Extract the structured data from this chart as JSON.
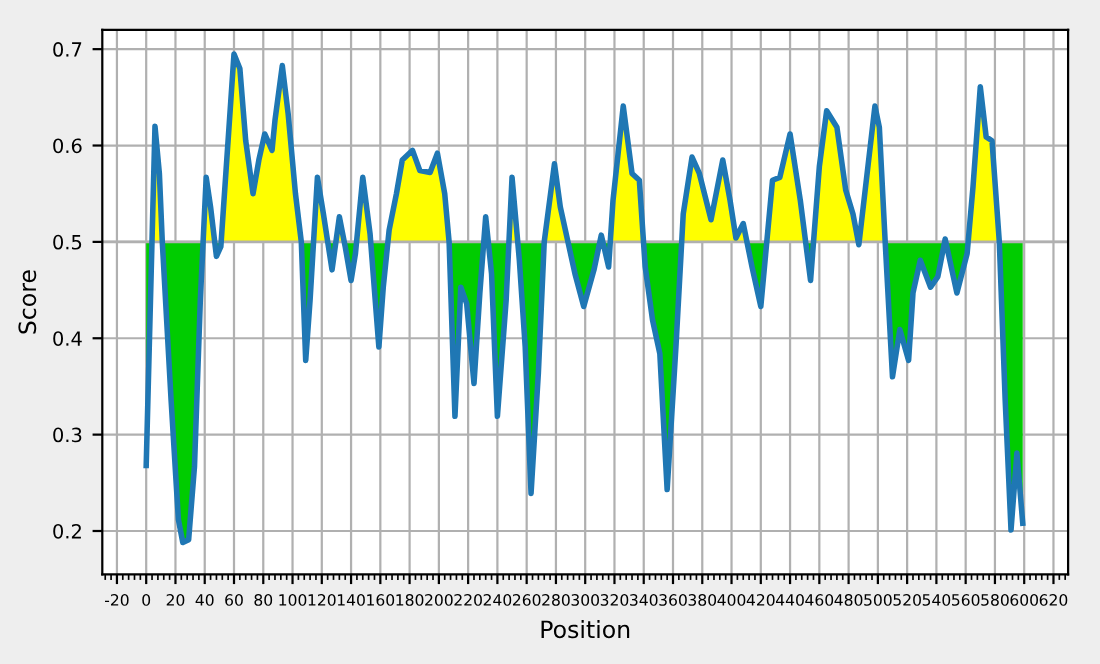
{
  "chart_data": {
    "type": "line",
    "xlabel": "Position",
    "ylabel": "Score",
    "xlim": [
      -30,
      630
    ],
    "ylim": [
      0.155,
      0.72
    ],
    "xticks": [
      -20,
      0,
      20,
      40,
      60,
      80,
      100,
      120,
      140,
      160,
      180,
      200,
      220,
      240,
      260,
      280,
      300,
      320,
      340,
      360,
      380,
      400,
      420,
      440,
      460,
      480,
      500,
      520,
      540,
      560,
      580,
      600,
      620
    ],
    "yticks": [
      0.2,
      0.3,
      0.4,
      0.5,
      0.6,
      0.7
    ],
    "grid": true,
    "ref_lines": [
      {
        "axis": "y",
        "value": 0.5,
        "color": "#b0b0b0"
      }
    ],
    "series": [
      {
        "color": "#1f77b4",
        "x": [
          0,
          6,
          9,
          11,
          17,
          22,
          25,
          29,
          33,
          37,
          41,
          44,
          48,
          51,
          60,
          64,
          68,
          73,
          77,
          81,
          86,
          88,
          93,
          97,
          102,
          106,
          109,
          112,
          117,
          121,
          127,
          132,
          136,
          140,
          143,
          148,
          153,
          159,
          162,
          166,
          171,
          175,
          182,
          187,
          194,
          199,
          204,
          207,
          211,
          215,
          219,
          224,
          228,
          232,
          236,
          240,
          246,
          250,
          255,
          259,
          263,
          268,
          272,
          279,
          283,
          293,
          299,
          306,
          311,
          316,
          319,
          326,
          332,
          337,
          341,
          346,
          351,
          356,
          362,
          367,
          373,
          378,
          386,
          394,
          399,
          403,
          408,
          414,
          420,
          428,
          433,
          440,
          447,
          454,
          460,
          465,
          472,
          478,
          483,
          487,
          498,
          501,
          505,
          510,
          515,
          521,
          524,
          529,
          536,
          541,
          546,
          554,
          561,
          565,
          570,
          574,
          578,
          583,
          587,
          591,
          595,
          599
        ],
        "values": [
          0.268,
          0.62,
          0.571,
          0.5,
          0.336,
          0.212,
          0.188,
          0.191,
          0.267,
          0.44,
          0.567,
          0.536,
          0.485,
          0.495,
          0.695,
          0.68,
          0.605,
          0.55,
          0.585,
          0.612,
          0.595,
          0.626,
          0.683,
          0.633,
          0.55,
          0.5,
          0.377,
          0.44,
          0.567,
          0.53,
          0.471,
          0.526,
          0.495,
          0.46,
          0.488,
          0.567,
          0.508,
          0.391,
          0.453,
          0.512,
          0.55,
          0.585,
          0.595,
          0.574,
          0.572,
          0.592,
          0.55,
          0.5,
          0.319,
          0.453,
          0.436,
          0.353,
          0.447,
          0.526,
          0.467,
          0.319,
          0.44,
          0.567,
          0.481,
          0.391,
          0.239,
          0.364,
          0.5,
          0.581,
          0.536,
          0.467,
          0.433,
          0.471,
          0.507,
          0.474,
          0.543,
          0.641,
          0.571,
          0.564,
          0.474,
          0.419,
          0.384,
          0.243,
          0.391,
          0.529,
          0.588,
          0.571,
          0.523,
          0.585,
          0.543,
          0.504,
          0.519,
          0.474,
          0.433,
          0.564,
          0.567,
          0.612,
          0.543,
          0.46,
          0.578,
          0.636,
          0.619,
          0.554,
          0.529,
          0.497,
          0.641,
          0.619,
          0.5,
          0.36,
          0.409,
          0.377,
          0.447,
          0.481,
          0.453,
          0.464,
          0.503,
          0.447,
          0.488,
          0.557,
          0.661,
          0.609,
          0.605,
          0.5,
          0.336,
          0.201,
          0.281,
          0.208
        ]
      }
    ]
  }
}
